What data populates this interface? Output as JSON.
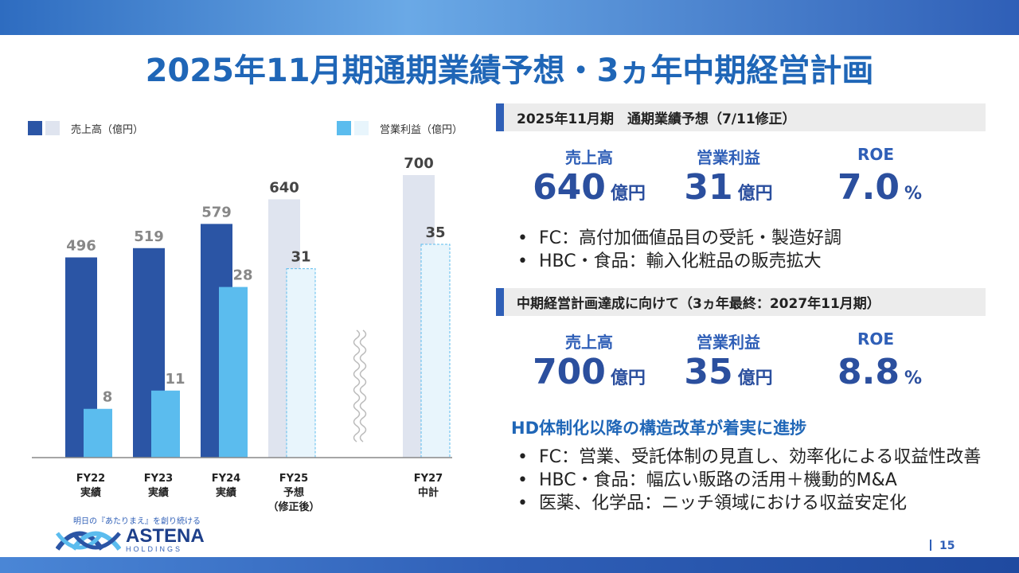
{
  "title": "2025年11月期通期業績予想・3ヵ年中期経営計画",
  "legend": {
    "sales": "売上高（億円）",
    "op_profit": "営業利益（億円）"
  },
  "colors": {
    "sales_actual": "#2b55a5",
    "sales_plan": "#dfe4ef",
    "op_actual": "#5bbcee",
    "op_plan": "#e8f5fc",
    "accent": "#2f5fb7",
    "title": "#1f66b7"
  },
  "chart_data": {
    "type": "bar",
    "categories": [
      "FY22\n実績",
      "FY23\n実績",
      "FY24\n実績",
      "FY25\n予想\n（修正後）",
      "FY27\n中計"
    ],
    "series": [
      {
        "name": "売上高（億円）",
        "values": [
          496,
          519,
          579,
          640,
          700
        ]
      },
      {
        "name": "営業利益（億円）",
        "values": [
          8,
          11,
          28,
          31,
          35
        ]
      }
    ],
    "value_labels": {
      "sales": [
        "496",
        "519",
        "579",
        "640",
        "700"
      ],
      "op_profit": [
        "8",
        "11",
        "28",
        "31",
        "35"
      ]
    },
    "actual_count": 3,
    "axis_break_before_last": true,
    "legend_position": "top"
  },
  "forecast": {
    "header": "2025年11月期　通期業績予想（7/11修正）",
    "kpis": [
      {
        "label": "売上高",
        "value": "640",
        "unit": "億円"
      },
      {
        "label": "営業利益",
        "value": "31",
        "unit": "億円"
      },
      {
        "label": "ROE",
        "value": "7.0",
        "unit": "%"
      }
    ],
    "bullets": [
      "FC：高付加価値品目の受託・製造好調",
      "HBC・食品：輸入化粧品の販売拡大"
    ]
  },
  "midterm": {
    "header": "中期経営計画達成に向けて（3ヵ年最終：2027年11月期）",
    "kpis": [
      {
        "label": "売上高",
        "value": "700",
        "unit": "億円"
      },
      {
        "label": "営業利益",
        "value": "35",
        "unit": "億円"
      },
      {
        "label": "ROE",
        "value": "8.8",
        "unit": "%"
      }
    ],
    "subhead": "HD体制化以降の構造改革が着実に進捗",
    "bullets": [
      "FC：営業、受託体制の見直し、効率化による収益性改善",
      "HBC・食品：幅広い販路の活用＋機動的M&A",
      "医薬、化学品：ニッチ領域における収益安定化"
    ]
  },
  "footer": {
    "tagline": "明日の『あたりまえ』を創り続ける",
    "logo_main": "ASTENA",
    "logo_sub": "HOLDINGS",
    "page_number": "15"
  }
}
